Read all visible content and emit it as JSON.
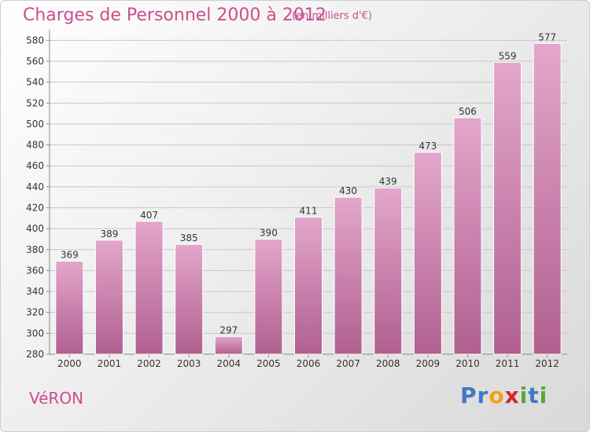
{
  "title": "Charges de Personnel 2000 à 2012",
  "subtitle": "(en milliers d'€)",
  "town": "VéRON",
  "logo": {
    "letters": [
      {
        "ch": "P",
        "color": "#3f79c5"
      },
      {
        "ch": "r",
        "color": "#3f79c5"
      },
      {
        "ch": "o",
        "color": "#f1a21b"
      },
      {
        "ch": "x",
        "color": "#d7262e"
      },
      {
        "ch": "i",
        "color": "#5aa63a"
      },
      {
        "ch": "t",
        "color": "#3f79c5"
      },
      {
        "ch": "i",
        "color": "#5aa63a"
      }
    ]
  },
  "colors": {
    "accent": "#cc4d8c",
    "bar_top": "#e3a6cc",
    "bar_bottom": "#b0608f"
  },
  "chart_data": {
    "type": "bar",
    "title": "Charges de Personnel 2000 à 2012",
    "subtitle": "(en milliers d'€)",
    "categories": [
      "2000",
      "2001",
      "2002",
      "2003",
      "2004",
      "2005",
      "2006",
      "2007",
      "2008",
      "2009",
      "2010",
      "2011",
      "2012"
    ],
    "values": [
      369,
      389,
      407,
      385,
      297,
      390,
      411,
      430,
      439,
      473,
      506,
      559,
      577
    ],
    "ylim": [
      280,
      590
    ],
    "yticks": [
      280,
      300,
      320,
      340,
      360,
      380,
      400,
      420,
      440,
      460,
      480,
      500,
      520,
      540,
      560,
      580
    ],
    "grid": true,
    "data_labels": true
  }
}
